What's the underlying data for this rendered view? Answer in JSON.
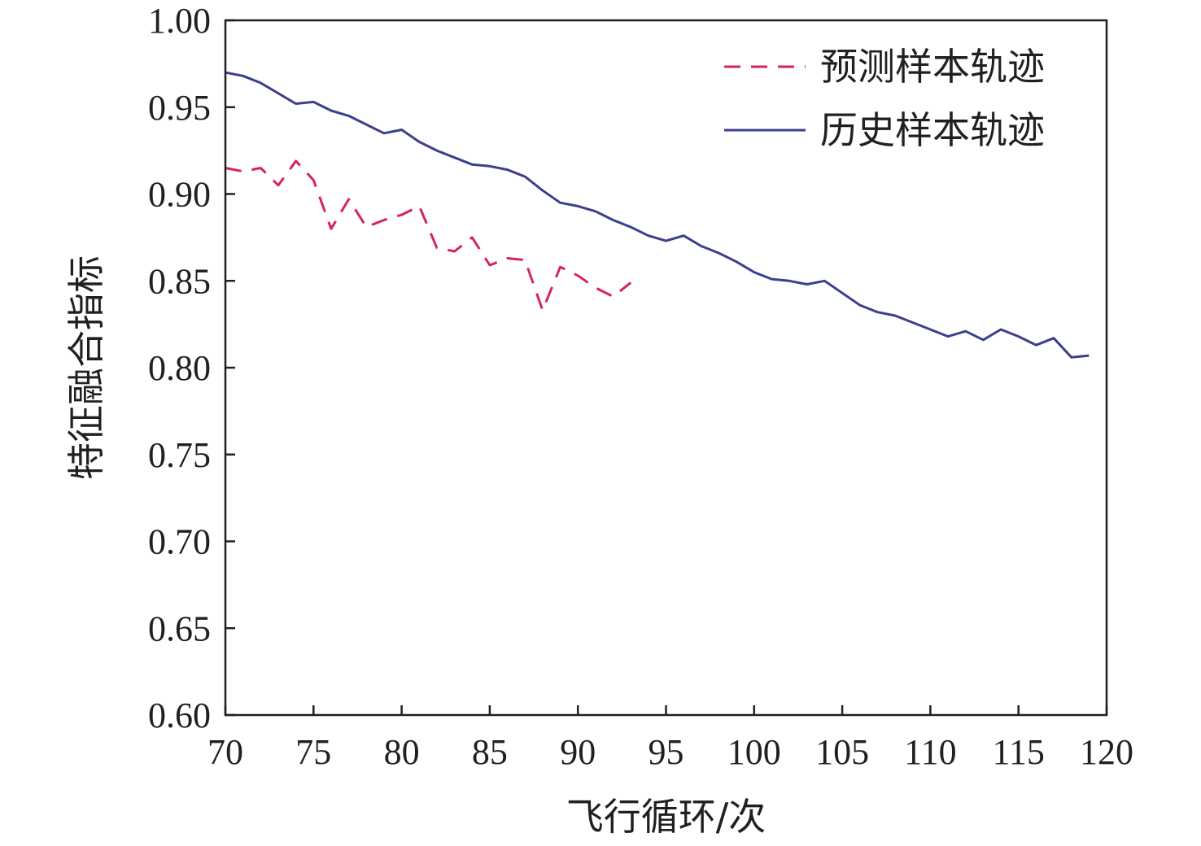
{
  "chart_data": {
    "type": "line",
    "xlabel": "飞行循环/次",
    "ylabel": "特征融合指标",
    "xlim": [
      70,
      120
    ],
    "ylim": [
      0.6,
      1.0
    ],
    "x_ticks": [
      "70",
      "75",
      "80",
      "85",
      "90",
      "95",
      "100",
      "105",
      "110",
      "115",
      "120"
    ],
    "y_ticks": [
      "0.60",
      "0.65",
      "0.70",
      "0.75",
      "0.80",
      "0.85",
      "0.90",
      "0.95",
      "1.00"
    ],
    "grid": false,
    "legend_position": "top-right",
    "series": [
      {
        "name": "预测样本轨迹",
        "style": "dashed",
        "color": "#d6245a",
        "x": [
          70,
          71,
          72,
          73,
          74,
          75,
          76,
          77,
          78,
          79,
          80,
          81,
          82,
          83,
          84,
          85,
          86,
          87,
          88,
          89,
          90,
          91,
          92,
          93
        ],
        "y": [
          0.915,
          0.913,
          0.915,
          0.905,
          0.919,
          0.908,
          0.88,
          0.897,
          0.881,
          0.885,
          0.888,
          0.893,
          0.869,
          0.867,
          0.875,
          0.859,
          0.863,
          0.862,
          0.833,
          0.858,
          0.853,
          0.846,
          0.841,
          0.849
        ]
      },
      {
        "name": "历史样本轨迹",
        "style": "solid",
        "color": "#3c3f8c",
        "x": [
          70,
          71,
          72,
          73,
          74,
          75,
          76,
          77,
          78,
          79,
          80,
          81,
          82,
          83,
          84,
          85,
          86,
          87,
          88,
          89,
          90,
          91,
          92,
          93,
          94,
          95,
          96,
          97,
          98,
          99,
          100,
          101,
          102,
          103,
          104,
          105,
          106,
          107,
          108,
          109,
          110,
          111,
          112,
          113,
          114,
          115,
          116,
          117,
          118,
          119
        ],
        "y": [
          0.97,
          0.968,
          0.964,
          0.958,
          0.952,
          0.953,
          0.948,
          0.945,
          0.94,
          0.935,
          0.937,
          0.93,
          0.925,
          0.921,
          0.917,
          0.916,
          0.914,
          0.91,
          0.902,
          0.895,
          0.893,
          0.89,
          0.885,
          0.881,
          0.876,
          0.873,
          0.876,
          0.87,
          0.866,
          0.861,
          0.855,
          0.851,
          0.85,
          0.848,
          0.85,
          0.843,
          0.836,
          0.832,
          0.83,
          0.826,
          0.822,
          0.818,
          0.821,
          0.816,
          0.822,
          0.818,
          0.813,
          0.817,
          0.806,
          0.807
        ]
      }
    ]
  }
}
